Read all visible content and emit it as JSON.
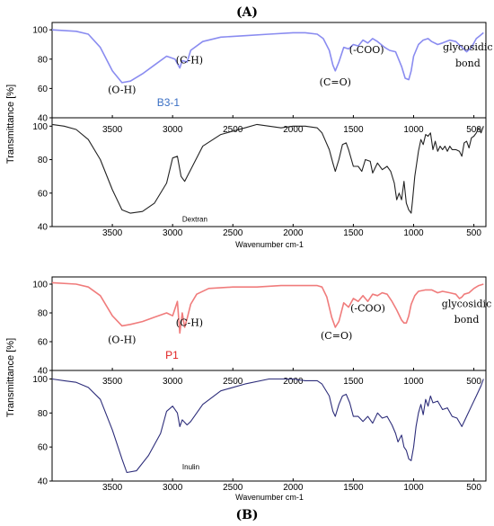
{
  "panel_labels": [
    "(A)",
    "(B)"
  ],
  "y_axis_label": "Transmittance [%]",
  "x_axis_label": "Wavenumber cm-1",
  "x_ticks": [
    3500,
    3000,
    2500,
    2000,
    1500,
    1000,
    500
  ],
  "colors": {
    "b31": "#8a8cf0",
    "b31_label": "#3a6fc4",
    "dextran": "#222222",
    "p1": "#f07c7c",
    "p1_label": "#e02020",
    "inulin": "#2d2d7a"
  },
  "chart_data": [
    {
      "type": "line",
      "panel": "(A)",
      "sample_label": "B3-1",
      "reference_label": "Dextran",
      "xlabel": "Wavenumber cm-1",
      "ylabel": "Transmittance [%]",
      "xlim": [
        4000,
        400
      ],
      "top_ticks": [
        40,
        60,
        80,
        100
      ],
      "bottom_ticks": [
        40,
        60,
        80,
        100
      ],
      "top_ylim": [
        40,
        105
      ],
      "bottom_ylim": [
        40,
        105
      ],
      "annotations": [
        {
          "text": "(O-H)",
          "x": 3420,
          "y": 57
        },
        {
          "text": "(C-H)",
          "x": 2860,
          "y": 77
        },
        {
          "text": "(C=O)",
          "x": 1650,
          "y": 62
        },
        {
          "text": "(-COO)",
          "x": 1390,
          "y": 84
        },
        {
          "text": "glycosidic",
          "x": 550,
          "y": 86
        },
        {
          "text": "bond",
          "x": 550,
          "y": 75
        }
      ],
      "sample_label_pos": {
        "x": 3130,
        "y": 48
      },
      "reference_label_pos": {
        "x": 2920,
        "y": 43
      },
      "series": [
        {
          "name": "B3-1",
          "color": "#8a8cf0",
          "panel": "top",
          "x": [
            4000,
            3800,
            3700,
            3600,
            3500,
            3420,
            3350,
            3250,
            3150,
            3050,
            2980,
            2940,
            2920,
            2880,
            2850,
            2750,
            2600,
            2400,
            2200,
            2000,
            1900,
            1800,
            1750,
            1700,
            1670,
            1650,
            1620,
            1580,
            1540,
            1500,
            1460,
            1420,
            1380,
            1340,
            1300,
            1240,
            1200,
            1150,
            1100,
            1070,
            1040,
            1020,
            1000,
            960,
            920,
            880,
            850,
            800,
            760,
            700,
            650,
            600,
            560,
            520,
            480,
            450,
            420
          ],
          "values": [
            100,
            99,
            97,
            88,
            72,
            64,
            65,
            70,
            76,
            82,
            80,
            74,
            79,
            78,
            86,
            92,
            95,
            96,
            97,
            98,
            98,
            97,
            94,
            86,
            76,
            72,
            78,
            88,
            87,
            90,
            89,
            93,
            91,
            94,
            92,
            88,
            86,
            85,
            75,
            67,
            66,
            72,
            82,
            90,
            93,
            94,
            92,
            90,
            91,
            93,
            92,
            88,
            85,
            88,
            94,
            96,
            98
          ]
        },
        {
          "name": "Dextran",
          "color": "#222222",
          "panel": "bottom",
          "x": [
            4000,
            3900,
            3800,
            3700,
            3600,
            3500,
            3420,
            3350,
            3250,
            3150,
            3050,
            3000,
            2960,
            2930,
            2900,
            2850,
            2750,
            2600,
            2400,
            2300,
            2200,
            2100,
            2000,
            1900,
            1800,
            1760,
            1700,
            1670,
            1650,
            1620,
            1590,
            1560,
            1540,
            1500,
            1460,
            1430,
            1400,
            1360,
            1340,
            1300,
            1260,
            1220,
            1190,
            1160,
            1140,
            1120,
            1100,
            1080,
            1060,
            1040,
            1020,
            1010,
            990,
            960,
            940,
            920,
            900,
            880,
            860,
            840,
            820,
            800,
            780,
            760,
            740,
            720,
            700,
            680,
            650,
            620,
            600,
            580,
            560,
            540,
            520,
            500,
            480,
            460,
            440,
            420
          ],
          "values": [
            101,
            100,
            98,
            92,
            80,
            62,
            50,
            48,
            49,
            54,
            66,
            81,
            82,
            70,
            67,
            74,
            88,
            95,
            99,
            101,
            100,
            99,
            100,
            100,
            99,
            96,
            86,
            78,
            73,
            80,
            89,
            90,
            86,
            76,
            76,
            73,
            80,
            79,
            72,
            78,
            74,
            76,
            73,
            66,
            56,
            60,
            56,
            67,
            54,
            50,
            48,
            55,
            70,
            85,
            92,
            89,
            95,
            94,
            96,
            86,
            91,
            85,
            88,
            86,
            88,
            85,
            88,
            86,
            86,
            85,
            82,
            90,
            91,
            87,
            93,
            94,
            96,
            99,
            96,
            100
          ]
        }
      ]
    },
    {
      "type": "line",
      "panel": "(B)",
      "sample_label": "P1",
      "reference_label": "Inulin",
      "xlabel": "Wavenumber cm-1",
      "ylabel": "Transmittance [%]",
      "xlim": [
        4000,
        400
      ],
      "top_ticks": [
        40,
        60,
        80,
        100
      ],
      "bottom_ticks": [
        40,
        60,
        80,
        100
      ],
      "top_ylim": [
        40,
        105
      ],
      "bottom_ylim": [
        40,
        105
      ],
      "annotations": [
        {
          "text": "(O-H)",
          "x": 3420,
          "y": 59
        },
        {
          "text": "(C-H)",
          "x": 2860,
          "y": 71
        },
        {
          "text": "(C=O)",
          "x": 1640,
          "y": 62
        },
        {
          "text": "(-COO)",
          "x": 1380,
          "y": 81
        },
        {
          "text": "glycosidic",
          "x": 560,
          "y": 84
        },
        {
          "text": "bond",
          "x": 560,
          "y": 73
        }
      ],
      "sample_label_pos": {
        "x": 3060,
        "y": 48
      },
      "reference_label_pos": {
        "x": 2920,
        "y": 47
      },
      "series": [
        {
          "name": "P1",
          "color": "#f07c7c",
          "panel": "top",
          "x": [
            4000,
            3800,
            3700,
            3600,
            3500,
            3420,
            3350,
            3250,
            3150,
            3050,
            3000,
            2960,
            2940,
            2920,
            2900,
            2880,
            2850,
            2800,
            2700,
            2500,
            2300,
            2100,
            1900,
            1800,
            1760,
            1720,
            1680,
            1650,
            1620,
            1580,
            1540,
            1500,
            1460,
            1420,
            1400,
            1380,
            1340,
            1300,
            1260,
            1220,
            1180,
            1140,
            1100,
            1080,
            1060,
            1040,
            1020,
            990,
            960,
            900,
            850,
            800,
            760,
            700,
            650,
            620,
            600,
            580,
            540,
            500,
            460,
            420
          ],
          "values": [
            101,
            100,
            98,
            92,
            78,
            71,
            72,
            74,
            77,
            80,
            78,
            88,
            66,
            80,
            70,
            76,
            86,
            93,
            97,
            98,
            98,
            99,
            99,
            99,
            98,
            91,
            77,
            70,
            74,
            87,
            84,
            90,
            88,
            92,
            90,
            88,
            93,
            92,
            94,
            93,
            88,
            82,
            75,
            73,
            73,
            78,
            86,
            92,
            95,
            96,
            96,
            94,
            95,
            94,
            93,
            90,
            91,
            93,
            94,
            97,
            99,
            100
          ]
        },
        {
          "name": "Inulin",
          "color": "#2d2d7a",
          "panel": "bottom",
          "x": [
            4000,
            3900,
            3800,
            3700,
            3600,
            3500,
            3420,
            3380,
            3300,
            3200,
            3100,
            3050,
            3000,
            2960,
            2940,
            2920,
            2880,
            2850,
            2750,
            2600,
            2400,
            2200,
            2000,
            1900,
            1800,
            1760,
            1700,
            1670,
            1650,
            1620,
            1590,
            1560,
            1530,
            1500,
            1460,
            1420,
            1380,
            1340,
            1300,
            1260,
            1220,
            1180,
            1150,
            1130,
            1100,
            1080,
            1060,
            1040,
            1020,
            1000,
            980,
            960,
            940,
            920,
            900,
            880,
            860,
            840,
            800,
            760,
            720,
            680,
            640,
            600,
            560,
            520,
            480,
            440,
            420
          ],
          "values": [
            100,
            99,
            98,
            95,
            88,
            70,
            53,
            45,
            46,
            55,
            68,
            81,
            84,
            80,
            72,
            76,
            73,
            75,
            85,
            93,
            97,
            100,
            100,
            99,
            99,
            97,
            90,
            81,
            78,
            85,
            90,
            91,
            86,
            78,
            78,
            75,
            78,
            74,
            80,
            77,
            78,
            73,
            68,
            63,
            67,
            60,
            58,
            53,
            52,
            60,
            72,
            80,
            85,
            79,
            88,
            84,
            90,
            86,
            87,
            82,
            83,
            78,
            77,
            72,
            78,
            84,
            90,
            96,
            100
          ]
        }
      ]
    }
  ]
}
